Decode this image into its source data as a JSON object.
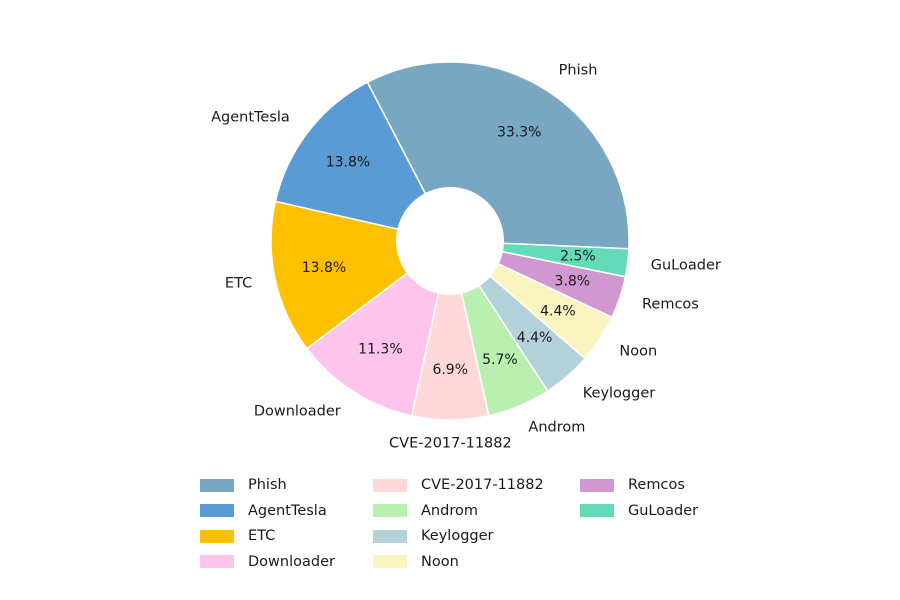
{
  "chart_data": {
    "type": "pie",
    "donut": true,
    "slices": [
      {
        "label": "Phish",
        "value": 33.3,
        "pct_text": "33.3%",
        "color": "#79a6c0"
      },
      {
        "label": "AgentTesla",
        "value": 13.8,
        "pct_text": "13.8%",
        "color": "#5b9bd5"
      },
      {
        "label": "ETC",
        "value": 13.8,
        "pct_text": "13.8%",
        "color": "#ffc000"
      },
      {
        "label": "Downloader",
        "value": 11.3,
        "pct_text": "11.3%",
        "color": "#ffc4ec"
      },
      {
        "label": "CVE-2017-11882",
        "value": 6.9,
        "pct_text": "6.9%",
        "color": "#ffd9d9"
      },
      {
        "label": "Androm",
        "value": 5.7,
        "pct_text": "5.7%",
        "color": "#b9f0b0"
      },
      {
        "label": "Keylogger",
        "value": 4.4,
        "pct_text": "4.4%",
        "color": "#b2d1d9"
      },
      {
        "label": "Noon",
        "value": 4.4,
        "pct_text": "4.4%",
        "color": "#faf4c0"
      },
      {
        "label": "Remcos",
        "value": 3.8,
        "pct_text": "3.8%",
        "color": "#d197d1"
      },
      {
        "label": "GuLoader",
        "value": 2.5,
        "pct_text": "2.5%",
        "color": "#63dbb8"
      }
    ],
    "legend_placement": "bottom",
    "legend_columns": 3
  }
}
